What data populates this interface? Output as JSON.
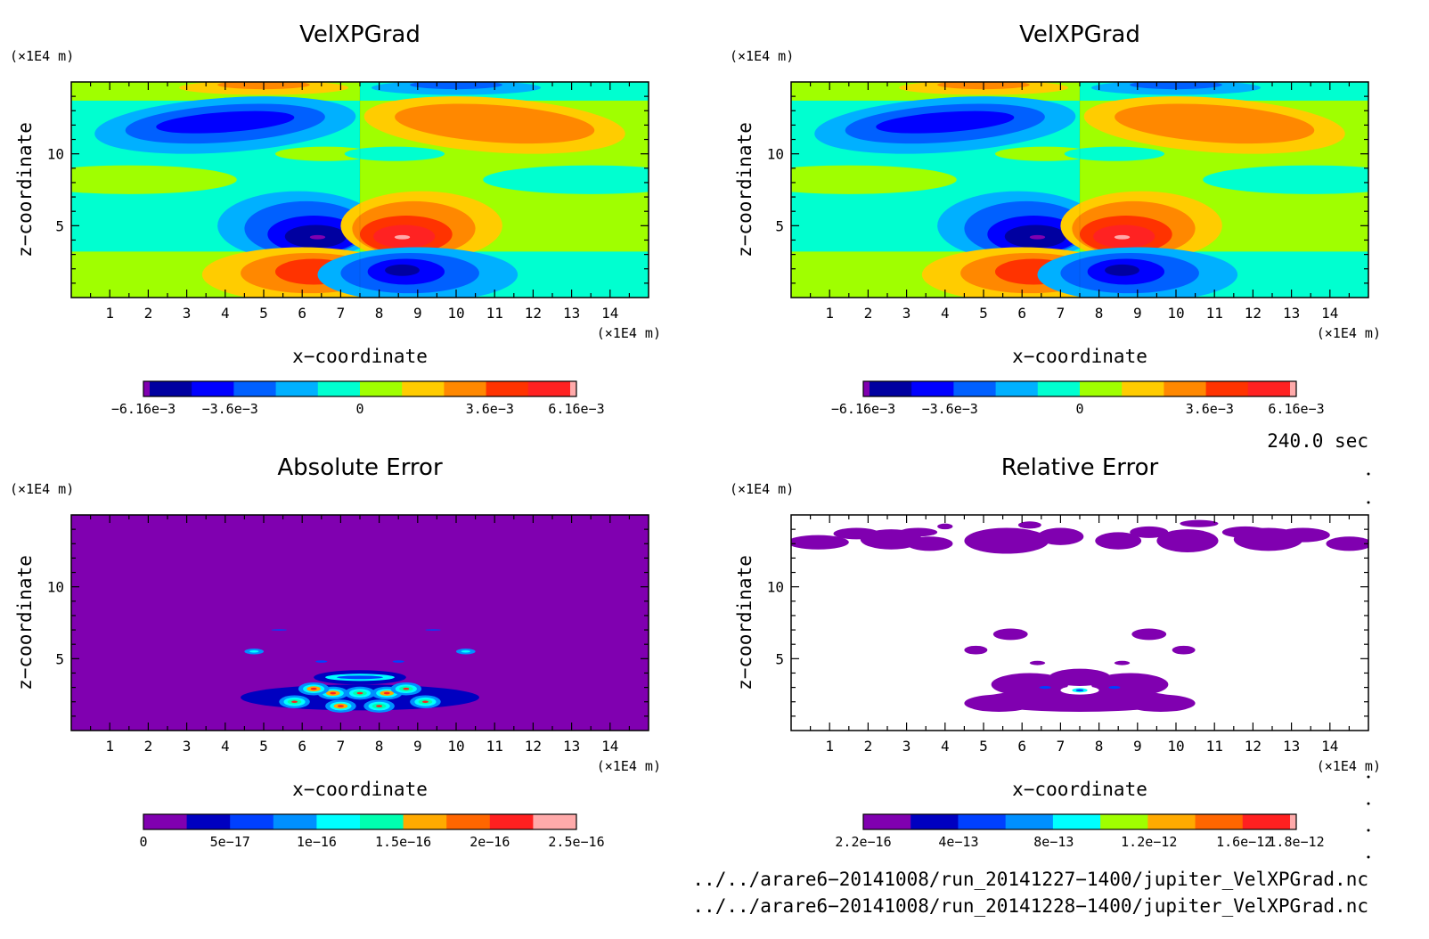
{
  "panels": [
    {
      "id": "top-left",
      "title": "VelXPGrad",
      "unit_top": "(×1E4 m)",
      "unit_right": "(×1E4 m)",
      "xlabel": "x−coordinate",
      "ylabel": "z−coordinate",
      "field": "velxpgrad",
      "colorbar": {
        "colors": [
          "#8000b0",
          "#0000a0",
          "#0000ff",
          "#0060ff",
          "#00b0ff",
          "#00ffd0",
          "#a0ff00",
          "#ffcc00",
          "#ff8800",
          "#ff3300",
          "#ff2222",
          "#ffaaaa"
        ],
        "labels": [
          "−6.16e−3",
          "−3.6e−3",
          "0",
          "3.6e−3",
          "6.16e−3"
        ]
      }
    },
    {
      "id": "top-right",
      "title": "VelXPGrad",
      "unit_top": "(×1E4 m)",
      "unit_right": "(×1E4 m)",
      "xlabel": "x−coordinate",
      "ylabel": "z−coordinate",
      "field": "velxpgrad",
      "colorbar": {
        "colors": [
          "#8000b0",
          "#0000a0",
          "#0000ff",
          "#0060ff",
          "#00b0ff",
          "#00ffd0",
          "#a0ff00",
          "#ffcc00",
          "#ff8800",
          "#ff3300",
          "#ff2222",
          "#ffaaaa"
        ],
        "labels": [
          "−6.16e−3",
          "−3.6e−3",
          "0",
          "3.6e−3",
          "6.16e−3"
        ]
      }
    },
    {
      "id": "bottom-left",
      "title": "Absolute Error",
      "unit_top": "(×1E4 m)",
      "unit_right": "(×1E4 m)",
      "xlabel": "x−coordinate",
      "ylabel": "z−coordinate",
      "field": "abserror",
      "colorbar": {
        "colors": [
          "#8000b0",
          "#0000c0",
          "#0040ff",
          "#0090ff",
          "#00ffff",
          "#00ffb0",
          "#ffaa00",
          "#ff6600",
          "#ff2020",
          "#ffaaaa"
        ],
        "labels": [
          "0",
          "5e−17",
          "1e−16",
          "1.5e−16",
          "2e−16",
          "2.5e−16"
        ]
      }
    },
    {
      "id": "bottom-right",
      "title": "Relative Error",
      "unit_top": "(×1E4 m)",
      "unit_right": "(×1E4 m)",
      "xlabel": "x−coordinate",
      "ylabel": "z−coordinate",
      "field": "relerror",
      "colorbar": {
        "colors": [
          "#8000b0",
          "#0000c0",
          "#0040ff",
          "#0090ff",
          "#00ffff",
          "#a0ff00",
          "#ffaa00",
          "#ff6600",
          "#ff2020",
          "#ffaaaa"
        ],
        "labels": [
          "2.2e−16",
          "4e−13",
          "8e−13",
          "1.2e−12",
          "1.6e−12",
          "1.8e−12"
        ]
      }
    }
  ],
  "time_label": "240.0 sec",
  "file_lines": [
    "../../arare6−20141008/run_20141227−1400/jupiter_VelXPGrad.nc",
    "../../arare6−20141008/run_20141228−1400/jupiter_VelXPGrad.nc"
  ],
  "chart_data": [
    {
      "type": "heatmap",
      "title": "VelXPGrad",
      "xlabel": "x−coordinate",
      "ylabel": "z−coordinate",
      "x_unit": "(×1E4 m)",
      "y_unit": "(×1E4 m)",
      "xlim": [
        0,
        15
      ],
      "ylim": [
        0,
        15
      ],
      "x_ticks": [
        1,
        2,
        3,
        4,
        5,
        6,
        7,
        8,
        9,
        10,
        11,
        12,
        13,
        14
      ],
      "y_ticks": [
        5,
        10
      ],
      "colorbar_labels": [
        "−6.16e−3",
        "−3.6e−3",
        "0",
        "3.6e−3",
        "6.16e−3"
      ],
      "value_range": [
        -0.00616,
        0.00616
      ],
      "features": [
        {
          "x": 6.3,
          "z": 4.2,
          "value": -0.00616
        },
        {
          "x": 8.7,
          "z": 4.2,
          "value": 0.00616
        },
        {
          "x": 6.3,
          "z": 1.8,
          "value": 0.0045
        },
        {
          "x": 8.7,
          "z": 1.8,
          "value": -0.0045
        },
        {
          "x": 4.0,
          "z": 12.2,
          "value": -0.0035
        },
        {
          "x": 11.0,
          "z": 12.2,
          "value": 0.0035
        }
      ]
    },
    {
      "type": "heatmap",
      "title": "VelXPGrad",
      "xlabel": "x−coordinate",
      "ylabel": "z−coordinate",
      "x_unit": "(×1E4 m)",
      "y_unit": "(×1E4 m)",
      "xlim": [
        0,
        15
      ],
      "ylim": [
        0,
        15
      ],
      "x_ticks": [
        1,
        2,
        3,
        4,
        5,
        6,
        7,
        8,
        9,
        10,
        11,
        12,
        13,
        14
      ],
      "y_ticks": [
        5,
        10
      ],
      "colorbar_labels": [
        "−6.16e−3",
        "−3.6e−3",
        "0",
        "3.6e−3",
        "6.16e−3"
      ],
      "value_range": [
        -0.00616,
        0.00616
      ],
      "features": [
        {
          "x": 6.3,
          "z": 4.2,
          "value": -0.00616
        },
        {
          "x": 8.7,
          "z": 4.2,
          "value": 0.00616
        },
        {
          "x": 6.3,
          "z": 1.8,
          "value": 0.0045
        },
        {
          "x": 8.7,
          "z": 1.8,
          "value": -0.0045
        },
        {
          "x": 4.0,
          "z": 12.2,
          "value": -0.0035
        },
        {
          "x": 11.0,
          "z": 12.2,
          "value": 0.0035
        }
      ]
    },
    {
      "type": "heatmap",
      "title": "Absolute Error",
      "xlabel": "x−coordinate",
      "ylabel": "z−coordinate",
      "x_unit": "(×1E4 m)",
      "y_unit": "(×1E4 m)",
      "xlim": [
        0,
        15
      ],
      "ylim": [
        0,
        15
      ],
      "x_ticks": [
        1,
        2,
        3,
        4,
        5,
        6,
        7,
        8,
        9,
        10,
        11,
        12,
        13,
        14
      ],
      "y_ticks": [
        5,
        10
      ],
      "colorbar_labels": [
        "0",
        "5e−17",
        "1e−16",
        "1.5e−16",
        "2e−16",
        "2.5e−16"
      ],
      "value_range": [
        0,
        2.5e-16
      ],
      "background_value": 0,
      "features": [
        {
          "x": 6.0,
          "z": 2.0,
          "value": 2e-16
        },
        {
          "x": 7.0,
          "z": 2.5,
          "value": 2.5e-16
        },
        {
          "x": 8.0,
          "z": 2.5,
          "value": 2.5e-16
        },
        {
          "x": 9.0,
          "z": 2.0,
          "value": 2e-16
        },
        {
          "x": 7.5,
          "z": 3.8,
          "value": 1e-16
        },
        {
          "x": 4.7,
          "z": 5.5,
          "value": 5e-17
        },
        {
          "x": 10.3,
          "z": 5.5,
          "value": 5e-17
        }
      ]
    },
    {
      "type": "heatmap",
      "title": "Relative Error",
      "xlabel": "x−coordinate",
      "ylabel": "z−coordinate",
      "x_unit": "(×1E4 m)",
      "y_unit": "(×1E4 m)",
      "xlim": [
        0,
        15
      ],
      "ylim": [
        0,
        15
      ],
      "x_ticks": [
        1,
        2,
        3,
        4,
        5,
        6,
        7,
        8,
        9,
        10,
        11,
        12,
        13,
        14
      ],
      "y_ticks": [
        5,
        10
      ],
      "colorbar_labels": [
        "2.2e−16",
        "4e−13",
        "8e−13",
        "1.2e−12",
        "1.6e−12",
        "1.8e−12"
      ],
      "value_range": [
        2.2e-16,
        1.8e-12
      ],
      "features": [
        {
          "x": 2.0,
          "z": 13.0,
          "value": 2.2e-16
        },
        {
          "x": 6.0,
          "z": 13.0,
          "value": 2.2e-16
        },
        {
          "x": 10.0,
          "z": 13.0,
          "value": 2.2e-16
        },
        {
          "x": 13.0,
          "z": 13.0,
          "value": 2.2e-16
        },
        {
          "x": 5.7,
          "z": 6.7,
          "value": 2.2e-16
        },
        {
          "x": 9.3,
          "z": 6.7,
          "value": 2.2e-16
        },
        {
          "x": 7.5,
          "z": 2.5,
          "value": 2.2e-16
        },
        {
          "x": 7.5,
          "z": 2.8,
          "value": 8e-13
        }
      ]
    }
  ]
}
